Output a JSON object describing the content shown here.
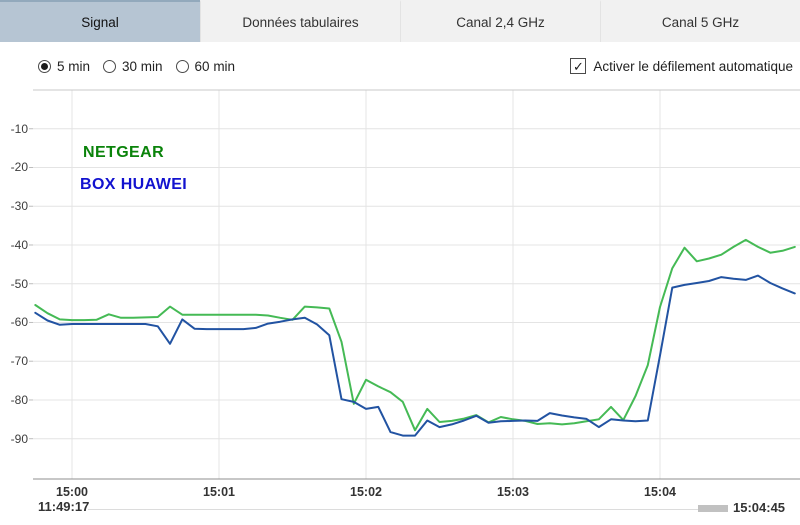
{
  "tabs": [
    {
      "label": "Signal",
      "selected": true
    },
    {
      "label": "Données tabulaires",
      "selected": false
    },
    {
      "label": "Canal 2,4 GHz",
      "selected": false
    },
    {
      "label": "Canal 5 GHz",
      "selected": false
    }
  ],
  "controls": {
    "radios": [
      {
        "label": "5 min",
        "checked": true
      },
      {
        "label": "30 min",
        "checked": false
      },
      {
        "label": "60 min",
        "checked": false
      }
    ],
    "autoscroll": {
      "label": "Activer le défilement automatique",
      "checked": true,
      "check_glyph": "✓"
    }
  },
  "chart_data": {
    "type": "line",
    "x_ticks": [
      "15:00",
      "15:01",
      "15:02",
      "15:03",
      "15:04"
    ],
    "y_ticks": [
      -10,
      -20,
      -30,
      -40,
      -50,
      -60,
      -70,
      -80,
      -90
    ],
    "ylim": [
      -100,
      0
    ],
    "x_start_seconds": -15,
    "x_step_seconds": 5,
    "grid": true,
    "legend_position": "top-left-inside",
    "colors": {
      "grid": "#e4e4e4",
      "axis": "#8f8f8f",
      "border": "#c9c9c9",
      "tick": "#bdbdbd"
    },
    "series": [
      {
        "name": "NETGEAR",
        "color": "#45ba55",
        "label_color": "#0a830a",
        "values": [
          -55.5,
          -57.6,
          -59.2,
          -59.4,
          -59.4,
          -59.3,
          -57.9,
          -58.8,
          -58.8,
          -58.7,
          -58.6,
          -55.9,
          -58.0,
          -58.0,
          -58.0,
          -58.0,
          -58.0,
          -58.0,
          -58.0,
          -58.2,
          -58.8,
          -59.3,
          -55.9,
          -56.1,
          -56.4,
          -65.0,
          -81.0,
          -74.8,
          -76.5,
          -78.0,
          -80.5,
          -87.8,
          -82.3,
          -85.7,
          -85.4,
          -84.8,
          -83.9,
          -85.8,
          -84.4,
          -85.0,
          -85.4,
          -86.2,
          -86.0,
          -86.3,
          -86.0,
          -85.5,
          -85.0,
          -81.8,
          -85.2,
          -79.0,
          -71.0,
          -56.0,
          -46.0,
          -40.7,
          -44.2,
          -43.5,
          -42.5,
          -40.5,
          -38.7,
          -40.5,
          -42.0,
          -41.5,
          -40.5
        ]
      },
      {
        "name": "BOX HUAWEI",
        "color": "#2253a2",
        "label_color": "#1212cf",
        "values": [
          -57.5,
          -59.5,
          -60.6,
          -60.4,
          -60.4,
          -60.4,
          -60.4,
          -60.4,
          -60.4,
          -60.4,
          -61.0,
          -65.5,
          -59.2,
          -61.6,
          -61.7,
          -61.7,
          -61.7,
          -61.7,
          -61.4,
          -60.3,
          -59.8,
          -59.2,
          -58.8,
          -60.5,
          -63.3,
          -79.8,
          -80.5,
          -82.3,
          -81.8,
          -88.3,
          -89.2,
          -89.2,
          -85.3,
          -87.0,
          -86.3,
          -85.3,
          -84.1,
          -85.9,
          -85.5,
          -85.4,
          -85.3,
          -85.4,
          -83.4,
          -84.0,
          -84.5,
          -84.9,
          -87.0,
          -85.0,
          -85.3,
          -85.5,
          -85.3,
          -68.5,
          -51.0,
          -50.3,
          -49.8,
          -49.3,
          -48.3,
          -48.7,
          -49.0,
          -47.9,
          -49.8,
          -51.2,
          -52.5
        ]
      }
    ]
  },
  "scrollbar": {
    "start_time": "11:49:17",
    "end_time": "15:04:45"
  }
}
